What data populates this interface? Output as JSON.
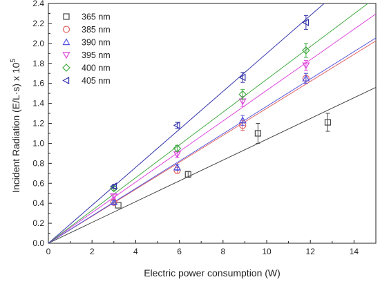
{
  "chart_data": {
    "type": "scatter",
    "title": "",
    "xlabel": "Electric power consumption (W)",
    "ylabel": "Incident Radiation (E/L·s) x 10",
    "ylabel_superscript": "5",
    "xlim": [
      0,
      15
    ],
    "ylim": [
      0,
      2.4
    ],
    "xticks": [
      "0",
      "2",
      "4",
      "6",
      "8",
      "10",
      "12",
      "14"
    ],
    "yticks": [
      "0.0",
      "0.2",
      "0.4",
      "0.6",
      "0.8",
      "1.0",
      "1.2",
      "1.4",
      "1.6",
      "1.8",
      "2.0",
      "2.2",
      "2.4"
    ],
    "grid": false,
    "legend_position": "top-left",
    "series": [
      {
        "name": "365 nm",
        "color": "#444444",
        "marker": "square",
        "fit_slope": 0.104,
        "points": [
          {
            "x": 3.2,
            "y": 0.38,
            "err": 0.0
          },
          {
            "x": 6.4,
            "y": 0.69,
            "err": 0.03
          },
          {
            "x": 9.6,
            "y": 1.1,
            "err": 0.1
          },
          {
            "x": 12.8,
            "y": 1.21,
            "err": 0.09
          }
        ]
      },
      {
        "name": "385 nm",
        "color": "#e06060",
        "marker": "circle",
        "fit_slope": 0.135,
        "points": [
          {
            "x": 3.0,
            "y": 0.41,
            "err": 0.02
          },
          {
            "x": 5.9,
            "y": 0.73,
            "err": 0.03
          },
          {
            "x": 8.9,
            "y": 1.18,
            "err": 0.05
          },
          {
            "x": 11.8,
            "y": 1.65,
            "err": 0.05
          }
        ]
      },
      {
        "name": "390 nm",
        "color": "#5555dd",
        "marker": "triangle-up",
        "fit_slope": 0.137,
        "points": [
          {
            "x": 3.0,
            "y": 0.41,
            "err": 0.02
          },
          {
            "x": 5.9,
            "y": 0.76,
            "err": 0.03
          },
          {
            "x": 8.9,
            "y": 1.23,
            "err": 0.05
          },
          {
            "x": 11.8,
            "y": 1.65,
            "err": 0.05
          }
        ]
      },
      {
        "name": "395 nm",
        "color": "#dd44dd",
        "marker": "triangle-down",
        "fit_slope": 0.153,
        "points": [
          {
            "x": 3.0,
            "y": 0.47,
            "err": 0.02
          },
          {
            "x": 5.9,
            "y": 0.89,
            "err": 0.03
          },
          {
            "x": 8.9,
            "y": 1.42,
            "err": 0.05
          },
          {
            "x": 11.8,
            "y": 1.78,
            "err": 0.05
          }
        ]
      },
      {
        "name": "400 nm",
        "color": "#44aa44",
        "marker": "diamond",
        "fit_slope": 0.164,
        "points": [
          {
            "x": 3.0,
            "y": 0.55,
            "err": 0.02
          },
          {
            "x": 5.9,
            "y": 0.95,
            "err": 0.03
          },
          {
            "x": 8.9,
            "y": 1.49,
            "err": 0.05
          },
          {
            "x": 11.8,
            "y": 1.93,
            "err": 0.07
          }
        ]
      },
      {
        "name": "405 nm",
        "color": "#3333aa",
        "marker": "triangle-left",
        "fit_slope": 0.19,
        "points": [
          {
            "x": 3.0,
            "y": 0.57,
            "err": 0.02
          },
          {
            "x": 5.9,
            "y": 1.18,
            "err": 0.03
          },
          {
            "x": 8.9,
            "y": 1.66,
            "err": 0.05
          },
          {
            "x": 11.8,
            "y": 2.21,
            "err": 0.07
          }
        ]
      }
    ]
  }
}
